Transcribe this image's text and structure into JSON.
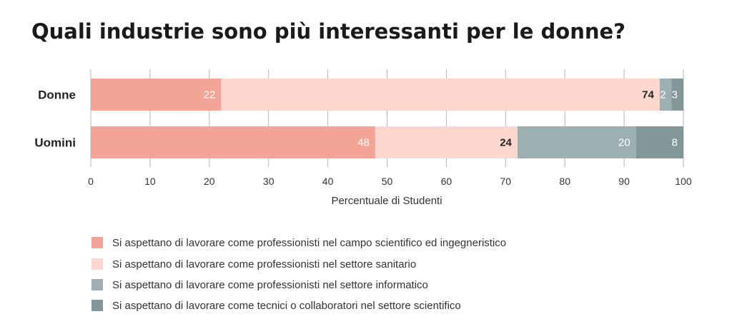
{
  "chart_data": {
    "type": "bar",
    "orientation": "horizontal",
    "stacked": true,
    "title": "Quali industrie sono più interessanti per le donne?",
    "xlabel": "Percentuale di Studenti",
    "ylabel": "",
    "xlim": [
      0,
      100
    ],
    "x_ticks": [
      "0",
      "10",
      "20",
      "30",
      "40",
      "50",
      "60",
      "70",
      "80",
      "90",
      "100"
    ],
    "grid": true,
    "legend_position": "bottom",
    "categories": [
      "Donne",
      "Uomini"
    ],
    "series": [
      {
        "name": "Si aspettano di lavorare come professionisti nel campo scientifico ed ingegneristico",
        "color": "#f4a496",
        "label_color": "#ffffff",
        "values": [
          22,
          48
        ]
      },
      {
        "name": "Si aspettano di lavorare come professionisti nel settore sanitario",
        "color": "#fbd7cd",
        "label_color": "#222222",
        "values": [
          74,
          24
        ]
      },
      {
        "name": "Si aspettano di lavorare come professionisti nel settore informatico",
        "color": "#9eafb3",
        "label_color": "#ffffff",
        "values": [
          2,
          20
        ]
      },
      {
        "name": "Si aspettano di lavorare come tecnici o collaboratori nel settore scientifico",
        "color": "#82979a",
        "label_color": "#ffffff",
        "values": [
          3,
          8
        ]
      }
    ]
  },
  "colors": {
    "gridline": "#b5b5b5",
    "text": "#222222"
  }
}
